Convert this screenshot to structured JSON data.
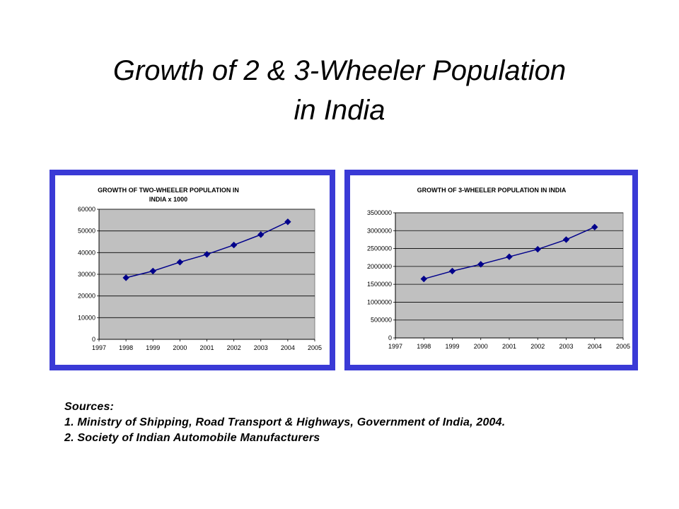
{
  "slide": {
    "title_line1": "Growth of 2 & 3-Wheeler Population",
    "title_line2": "in India"
  },
  "sources": {
    "heading": "Sources:",
    "line1": "1. Ministry of Shipping, Road Transport & Highways, Government of India, 2004.",
    "line2": "2. Society of Indian Automobile Manufacturers"
  },
  "colors": {
    "frame": "#3a3ad6",
    "plot_area": "#c0c0c0",
    "series": "#00008b"
  },
  "chart_data": [
    {
      "type": "line",
      "title_lines": [
        "GROWTH OF TWO-WHEELER POPULATION IN",
        "INDIA x 1000"
      ],
      "x": [
        1998,
        1999,
        2000,
        2001,
        2002,
        2003,
        2004
      ],
      "x_ticks": [
        "1997",
        "1998",
        "1999",
        "2000",
        "2001",
        "2002",
        "2003",
        "2004",
        "2005"
      ],
      "xlim": [
        1997,
        2005
      ],
      "y_ticks": [
        "0",
        "10000",
        "20000",
        "30000",
        "40000",
        "50000",
        "60000"
      ],
      "ylim": [
        0,
        60000
      ],
      "grid": true,
      "series": [
        {
          "values": [
            28400,
            31500,
            35600,
            39200,
            43500,
            48300,
            54200
          ]
        }
      ]
    },
    {
      "type": "line",
      "title_lines": [
        "GROWTH OF 3-WHEELER POPULATION IN INDIA"
      ],
      "x": [
        1998,
        1999,
        2000,
        2001,
        2002,
        2003,
        2004
      ],
      "x_ticks": [
        "1997",
        "1998",
        "1999",
        "2000",
        "2001",
        "2002",
        "2003",
        "2004",
        "2005"
      ],
      "xlim": [
        1997,
        2005
      ],
      "y_ticks": [
        "0",
        "500000",
        "1000000",
        "1500000",
        "2000000",
        "2500000",
        "3000000",
        "3500000"
      ],
      "ylim": [
        0,
        3500000
      ],
      "grid": true,
      "series": [
        {
          "values": [
            1650000,
            1870000,
            2060000,
            2270000,
            2480000,
            2750000,
            3100000
          ]
        }
      ]
    }
  ]
}
